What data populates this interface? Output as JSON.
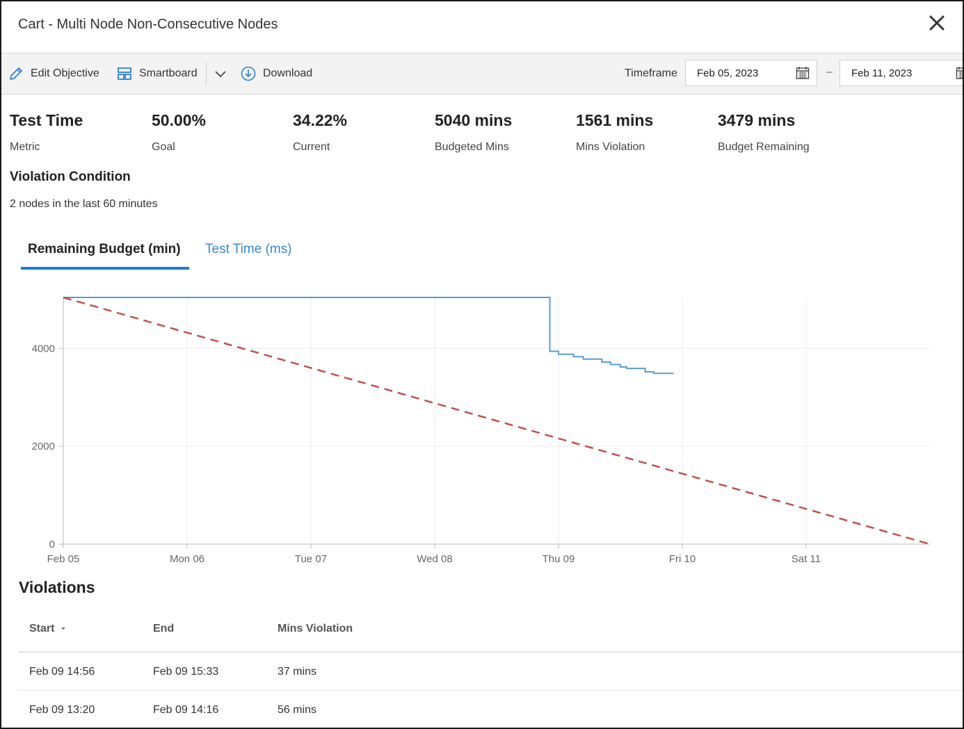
{
  "window": {
    "title": "Cart - Multi Node Non-Consecutive Nodes"
  },
  "toolbar": {
    "edit_label": "Edit Objective",
    "smartboard_label": "Smartboard",
    "download_label": "Download",
    "timeframe_label": "Timeframe",
    "date_from": "Feb 05, 2023",
    "date_to": "Feb 11, 2023",
    "separator": "–"
  },
  "metrics": [
    {
      "value": "Test Time",
      "label": "Metric"
    },
    {
      "value": "50.00%",
      "label": "Goal"
    },
    {
      "value": "34.22%",
      "label": "Current"
    },
    {
      "value": "5040 mins",
      "label": "Budgeted Mins"
    },
    {
      "value": "1561 mins",
      "label": "Mins Violation"
    },
    {
      "value": "3479 mins",
      "label": "Budget Remaining"
    }
  ],
  "violation_condition": {
    "title": "Violation Condition",
    "text": "2 nodes in the last 60 minutes"
  },
  "tabs": [
    {
      "label": "Remaining Budget (min)",
      "active": true
    },
    {
      "label": "Test Time (ms)",
      "active": false
    }
  ],
  "chart_data": {
    "type": "line",
    "title": "",
    "xlabel": "",
    "ylabel": "",
    "x_unit": "days since Feb 05",
    "xlim": [
      0,
      7
    ],
    "ylim": [
      0,
      5040
    ],
    "y_ticks": [
      0,
      2000,
      4000
    ],
    "x_tick_labels": [
      {
        "x": 0,
        "label": "Feb 05"
      },
      {
        "x": 1,
        "label": "Mon 06"
      },
      {
        "x": 2,
        "label": "Tue 07"
      },
      {
        "x": 3,
        "label": "Wed 08"
      },
      {
        "x": 4,
        "label": "Thu 09"
      },
      {
        "x": 5,
        "label": "Fri 10"
      },
      {
        "x": 6,
        "label": "Sat 11"
      }
    ],
    "grid": true,
    "series": [
      {
        "name": "Remaining Budget",
        "style": "step",
        "color": "#5a9bd4",
        "points": [
          [
            0,
            5040
          ],
          [
            3.93,
            5040
          ],
          [
            3.93,
            3940
          ],
          [
            4.0,
            3940
          ],
          [
            4.0,
            3880
          ],
          [
            4.12,
            3880
          ],
          [
            4.12,
            3830
          ],
          [
            4.2,
            3830
          ],
          [
            4.2,
            3780
          ],
          [
            4.35,
            3780
          ],
          [
            4.35,
            3720
          ],
          [
            4.42,
            3720
          ],
          [
            4.42,
            3670
          ],
          [
            4.5,
            3670
          ],
          [
            4.5,
            3620
          ],
          [
            4.55,
            3620
          ],
          [
            4.55,
            3590
          ],
          [
            4.7,
            3590
          ],
          [
            4.7,
            3520
          ],
          [
            4.77,
            3520
          ],
          [
            4.77,
            3490
          ],
          [
            4.93,
            3490
          ]
        ]
      },
      {
        "name": "Target",
        "style": "dashed",
        "color": "#c0504d",
        "points": [
          [
            0,
            5040
          ],
          [
            7,
            0
          ]
        ]
      }
    ]
  },
  "violations": {
    "title": "Violations",
    "columns": [
      "Start",
      "End",
      "Mins Violation"
    ],
    "rows": [
      [
        "Feb 09 14:56",
        "Feb 09 15:33",
        "37 mins"
      ],
      [
        "Feb 09 13:20",
        "Feb 09 14:16",
        "56 mins"
      ]
    ]
  }
}
